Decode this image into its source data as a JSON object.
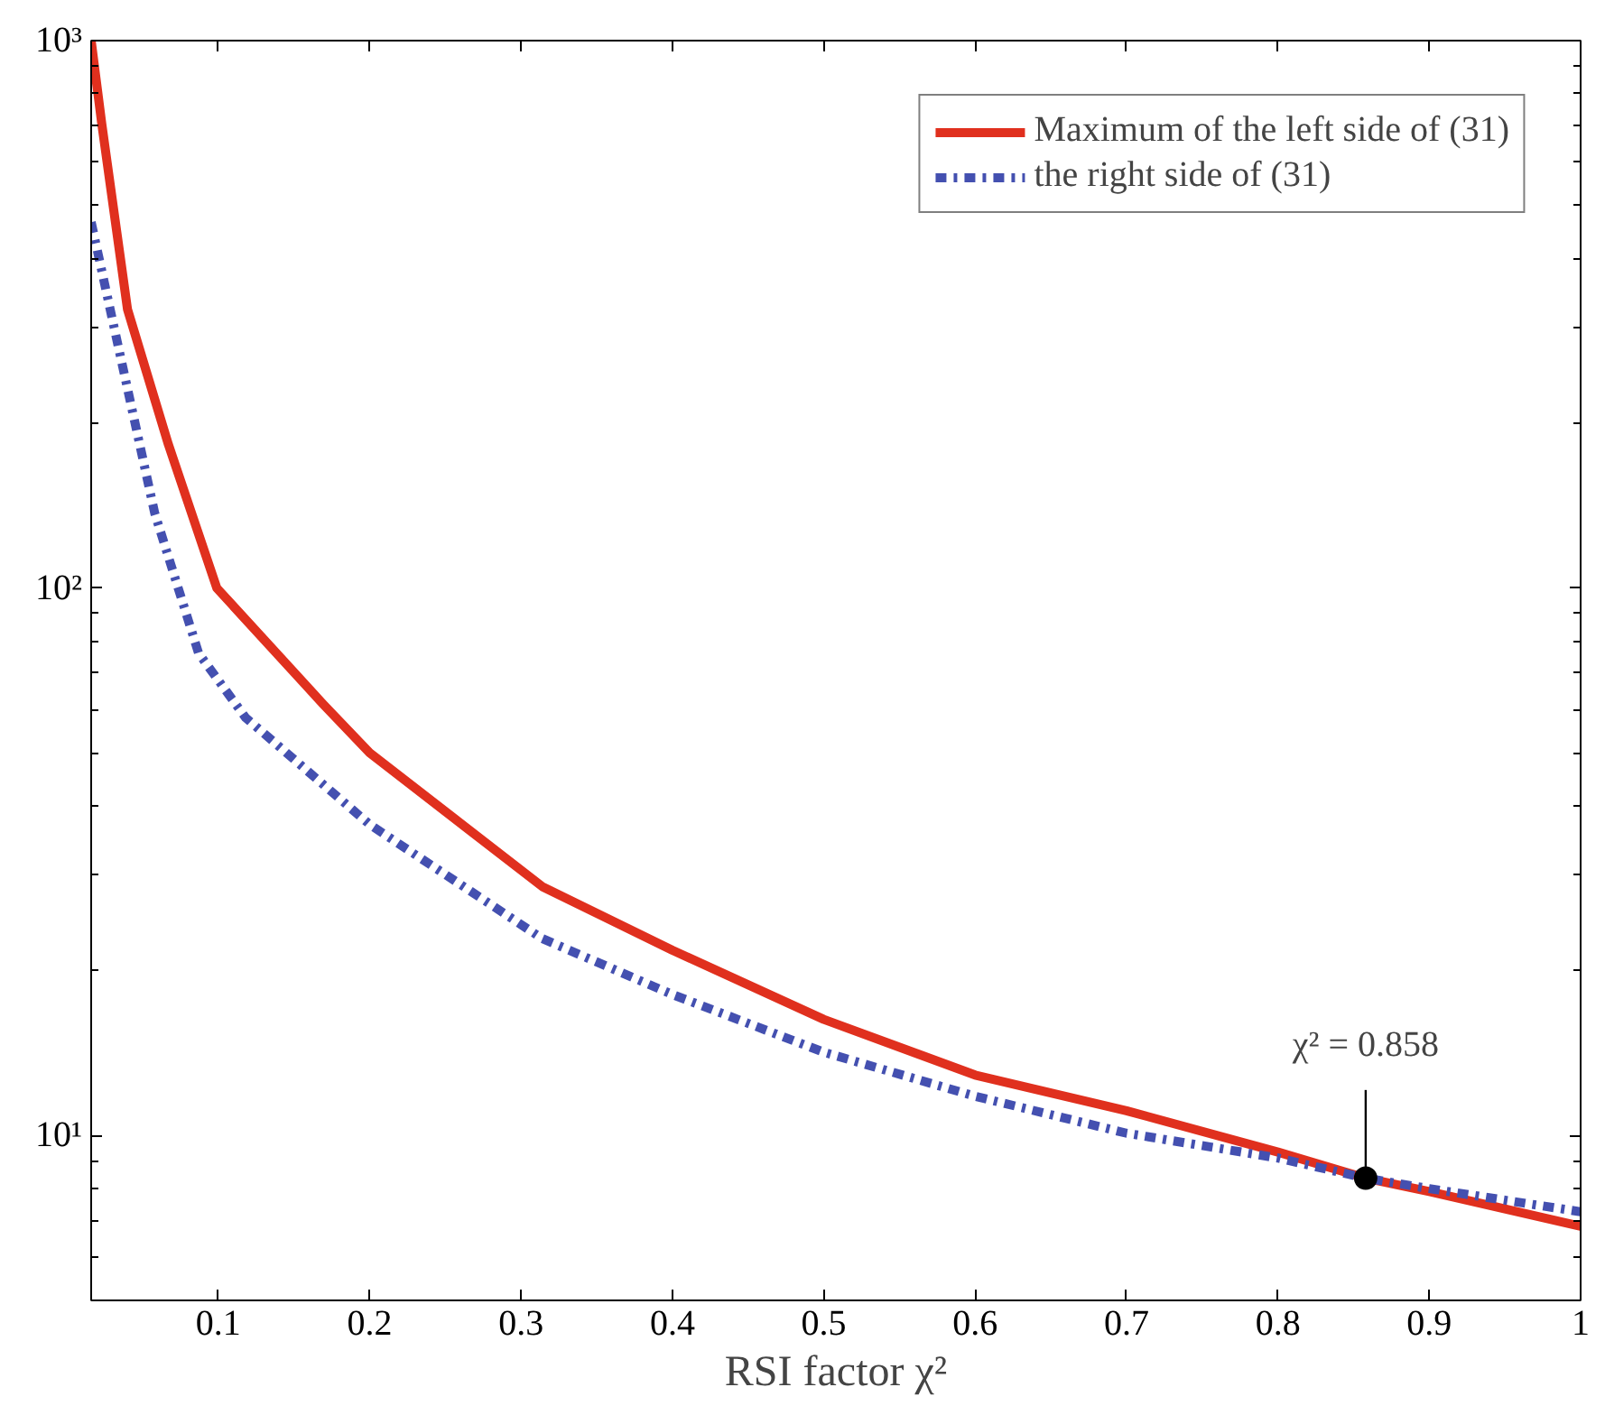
{
  "chart_data": {
    "type": "line",
    "xlabel": "RSI factor χ²",
    "log": "y",
    "xlim": [
      0.016,
      1
    ],
    "ylim": [
      5,
      1000
    ],
    "xticks": [
      0.1,
      0.2,
      0.3,
      0.4,
      0.5,
      0.6,
      0.7,
      0.8,
      0.9,
      1
    ],
    "yticks": [
      {
        "value": 10,
        "label": "10¹"
      },
      {
        "value": 100,
        "label": "10²"
      },
      {
        "value": 1000,
        "label": "10³"
      }
    ],
    "grid": false,
    "legend": "top right",
    "marker": "none",
    "series": [
      {
        "name": "Maximum of the left side of (31)",
        "color": "#e0301e",
        "line_style": "solid",
        "x": [
          0.016,
          0.023,
          0.04,
          0.067,
          0.099,
          0.169,
          0.2,
          0.314,
          0.4,
          0.5,
          0.6,
          0.7,
          0.8,
          0.858,
          0.9,
          1
        ],
        "values": [
          1000,
          705,
          323,
          183,
          100,
          61.5,
          50,
          28.5,
          21.8,
          16.3,
          12.9,
          11.1,
          9.33,
          8.36,
          7.9,
          6.83
        ]
      },
      {
        "name": "the right side of (31)",
        "color": "#4450b0",
        "line_style": "dashdot",
        "x": [
          0.016,
          0.032,
          0.058,
          0.087,
          0.118,
          0.2,
          0.314,
          0.4,
          0.5,
          0.6,
          0.7,
          0.8,
          0.858,
          0.9,
          1
        ],
        "values": [
          466,
          292,
          137,
          76,
          58,
          37,
          22.9,
          18.1,
          14.2,
          11.8,
          10.1,
          9.1,
          8.36,
          8.0,
          7.26
        ]
      }
    ],
    "annotations": [
      {
        "text": "χ² = 0.858",
        "x": 0.858,
        "y": 8.36
      }
    ]
  }
}
